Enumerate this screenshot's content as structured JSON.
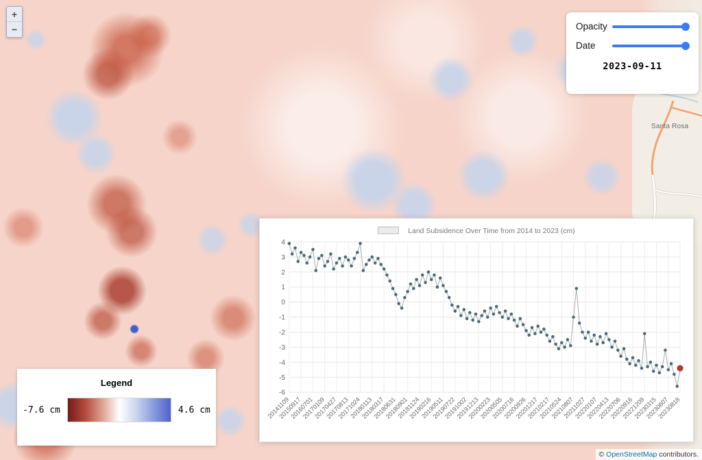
{
  "map": {
    "zoom_in_label": "+",
    "zoom_out_label": "−",
    "place_label": "Santa Rosa",
    "attribution": {
      "prefix": "© ",
      "link": "OpenStreetMap",
      "suffix": " contributors."
    }
  },
  "controls": {
    "opacity_label": "Opacity",
    "date_label": "Date",
    "date_value": "2023-09-11",
    "slider_color": "#3c79f5"
  },
  "legend": {
    "title": "Legend",
    "min_label": "-7.6 cm",
    "max_label": "4.6 cm",
    "gradient": [
      "#731c1c",
      "#b34a3c",
      "#dfa08f",
      "#ffffff",
      "#c9d4ec",
      "#8a9bdc",
      "#4f63cb"
    ]
  },
  "chart_data": {
    "type": "line",
    "title": "Land Subsidence Over Time from 2014 to 2023 (cm)",
    "legend_position": "top",
    "ylabel": "",
    "xlabel": "",
    "ylim": [
      -6,
      4
    ],
    "y_ticks": [
      4,
      3,
      2,
      1,
      0,
      -1,
      -2,
      -3,
      -4,
      -5,
      -6
    ],
    "grid": true,
    "label_every": 4,
    "x_tick_labels": [
      "20141109",
      "20150917",
      "20160701",
      "20170109",
      "20170427",
      "20170813",
      "20171024",
      "20180113",
      "20180317",
      "20180631",
      "20180901",
      "20181124",
      "20190216",
      "20190511",
      "20190722",
      "20191002",
      "20191213",
      "20200223",
      "20200505",
      "20200716",
      "20200926",
      "20201217",
      "20210217",
      "20210524",
      "20210807",
      "20211027",
      "20220107",
      "20220413",
      "20220706",
      "20220916",
      "20221209",
      "20230315",
      "20230607",
      "20230818"
    ],
    "values": [
      3.9,
      3.2,
      3.6,
      2.7,
      3.3,
      3.1,
      2.6,
      3.0,
      3.5,
      2.1,
      2.9,
      3.1,
      2.4,
      2.7,
      3.2,
      2.2,
      2.6,
      2.9,
      2.4,
      3.0,
      2.8,
      2.4,
      2.9,
      3.3,
      3.9,
      2.1,
      2.5,
      2.8,
      3.0,
      2.6,
      2.9,
      2.5,
      2.2,
      1.8,
      1.4,
      0.9,
      0.5,
      -0.1,
      -0.4,
      0.3,
      0.7,
      1.2,
      0.9,
      1.5,
      1.1,
      1.8,
      1.3,
      2.0,
      1.5,
      1.8,
      1.0,
      1.6,
      1.1,
      0.7,
      0.3,
      -0.2,
      -0.6,
      -0.3,
      -0.9,
      -0.5,
      -1.1,
      -0.7,
      -1.2,
      -0.8,
      -1.3,
      -0.9,
      -0.6,
      -1.0,
      -0.4,
      -0.8,
      -0.3,
      -0.7,
      -1.0,
      -0.6,
      -1.1,
      -0.8,
      -1.2,
      -1.6,
      -1.1,
      -1.5,
      -1.9,
      -2.2,
      -1.7,
      -2.1,
      -1.6,
      -2.0,
      -1.8,
      -2.2,
      -2.6,
      -2.3,
      -2.8,
      -3.1,
      -2.7,
      -3.0,
      -2.5,
      -2.9,
      -1.0,
      0.9,
      -1.4,
      -2.0,
      -2.4,
      -2.0,
      -2.6,
      -2.2,
      -2.8,
      -2.3,
      -2.7,
      -2.1,
      -2.5,
      -3.0,
      -2.6,
      -3.2,
      -3.6,
      -3.1,
      -3.8,
      -4.1,
      -3.7,
      -4.2,
      -3.9,
      -4.4,
      -2.1,
      -4.3,
      -4.0,
      -4.6,
      -4.2,
      -4.7,
      -4.3,
      -3.2,
      -4.5,
      -4.1,
      -4.8,
      -5.6,
      -4.4
    ],
    "point_color": "#4a6b77",
    "line_color": "#a7adb3",
    "highlight_last_point": true,
    "highlight_color": "#b23b2e",
    "grid_color": "#e7e7e7",
    "legend_swatch_color": "#ebebeb"
  }
}
